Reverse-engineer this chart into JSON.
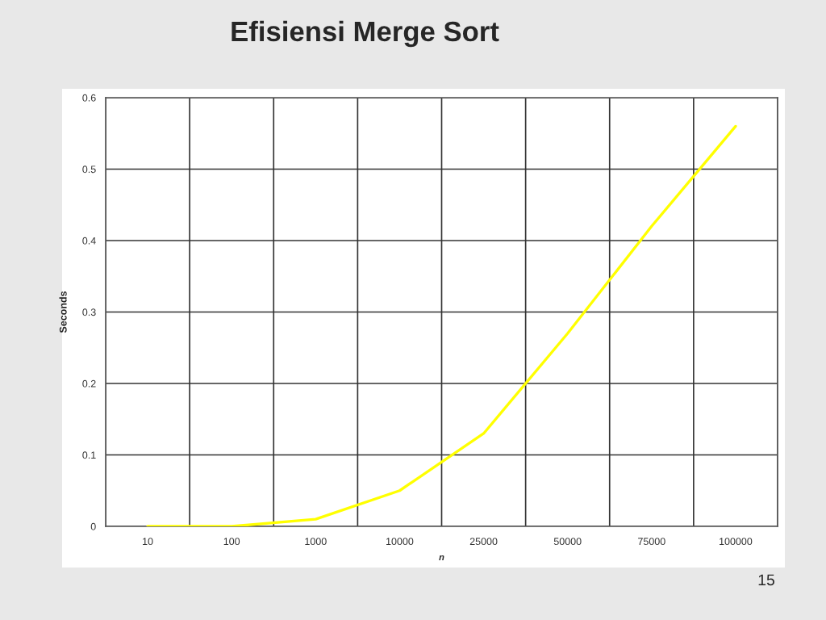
{
  "chart_data": {
    "type": "line",
    "title": "Efisiensi Merge Sort",
    "xlabel": "n",
    "ylabel": "Seconds",
    "categories": [
      "10",
      "100",
      "1000",
      "10000",
      "25000",
      "50000",
      "75000",
      "100000"
    ],
    "series": [
      {
        "color": "#ffff00",
        "values": [
          0,
          0,
          0.01,
          0.05,
          0.13,
          0.27,
          0.42,
          0.56
        ]
      }
    ],
    "ylim": [
      0,
      0.6
    ],
    "yticks": [
      0,
      0.1,
      0.2,
      0.3,
      0.4,
      0.5,
      0.6
    ],
    "grid": true,
    "marker": "none",
    "line_style": "solid",
    "annotations": [
      "15"
    ]
  }
}
